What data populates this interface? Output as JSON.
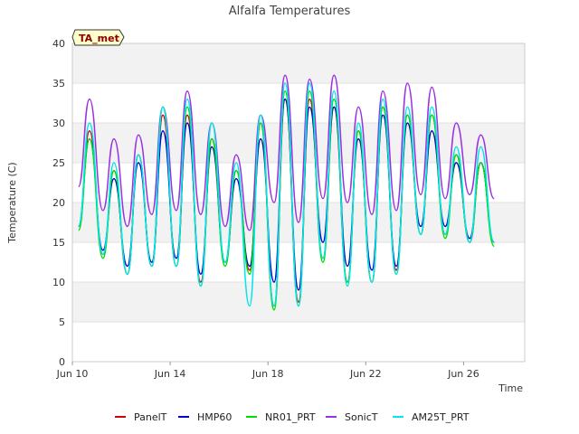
{
  "chart_data": {
    "type": "line",
    "title": "Alfalfa Temperatures",
    "xlabel": "Time",
    "ylabel": "Temperature (C)",
    "tag": "TA_met",
    "ylim": [
      0,
      40
    ],
    "xlim": [
      "Jun 10",
      "Jun 28"
    ],
    "yticks": [
      0,
      5,
      10,
      15,
      20,
      25,
      30,
      35,
      40
    ],
    "xticks": [
      "Jun 10",
      "Jun 14",
      "Jun 18",
      "Jun 22",
      "Jun 26"
    ],
    "grid": "horizontal bands",
    "legend_position": "bottom",
    "x_note": "x values are day of June",
    "series": [
      {
        "name": "PanelT",
        "color": "#d00000"
      },
      {
        "name": "HMP60",
        "color": "#0000cc"
      },
      {
        "name": "NR01_PRT",
        "color": "#00dd00"
      },
      {
        "name": "SonicT",
        "color": "#9b30e0"
      },
      {
        "name": "AM25T_PRT",
        "color": "#00e5ee"
      }
    ],
    "daily_extremes": {
      "x_min": [
        10.25,
        11.25,
        12.25,
        13.25,
        14.25,
        15.25,
        16.25,
        17.25,
        18.25,
        19.25,
        20.25,
        21.25,
        22.25,
        23.25,
        24.25,
        25.25,
        26.25,
        27.25
      ],
      "x_max": [
        10.7,
        11.7,
        12.7,
        13.7,
        14.7,
        15.7,
        16.7,
        17.7,
        18.7,
        19.7,
        20.7,
        21.7,
        22.7,
        23.7,
        24.7,
        25.7,
        26.7
      ],
      "PanelT_min": [
        17,
        13.5,
        11,
        12,
        12,
        10,
        12.5,
        11.5,
        7,
        7.5,
        13,
        10,
        10,
        11.5,
        16,
        16,
        15,
        15
      ],
      "PanelT_max": [
        29,
        24,
        26,
        31,
        31,
        28,
        24,
        30,
        33,
        33,
        32,
        29,
        32,
        31,
        31,
        26,
        25
      ],
      "HMP60_min": [
        17,
        14,
        12,
        12.5,
        13,
        11,
        12.5,
        12,
        10,
        9,
        15,
        12,
        11.5,
        12,
        17,
        17,
        15.5,
        15
      ],
      "HMP60_max": [
        28,
        23,
        25,
        29,
        30,
        27,
        23,
        28,
        33,
        32,
        32,
        28,
        31,
        30,
        29,
        25,
        25
      ],
      "NR01_PRT_min": [
        16.5,
        13,
        11,
        12,
        12,
        9.5,
        12,
        11,
        6.5,
        7,
        12.5,
        10,
        10,
        11,
        16,
        15.5,
        15,
        14.5
      ],
      "NR01_PRT_max": [
        28,
        24,
        26,
        32,
        32,
        28,
        24,
        30,
        34,
        34,
        33,
        29,
        32,
        31,
        31,
        26,
        25
      ],
      "SonicT_min": [
        22,
        19,
        17,
        18.5,
        19,
        18.5,
        17,
        16.5,
        20,
        17.5,
        20.5,
        20,
        18.5,
        19,
        21,
        20.5,
        21,
        20.5
      ],
      "SonicT_max": [
        33,
        28,
        28.5,
        32,
        34,
        30,
        26,
        31,
        36,
        35.5,
        36,
        32,
        34,
        35,
        34.5,
        30,
        28.5
      ],
      "AM25T_PRT_min": [
        17,
        13.5,
        11,
        12,
        12,
        9.5,
        12.5,
        7,
        7,
        7,
        13,
        9.5,
        10,
        11,
        16,
        16,
        15,
        15
      ],
      "AM25T_PRT_max": [
        30,
        25,
        26,
        32,
        33,
        30,
        25,
        31,
        35,
        35,
        34,
        30,
        33,
        32,
        32,
        27,
        27
      ]
    }
  }
}
